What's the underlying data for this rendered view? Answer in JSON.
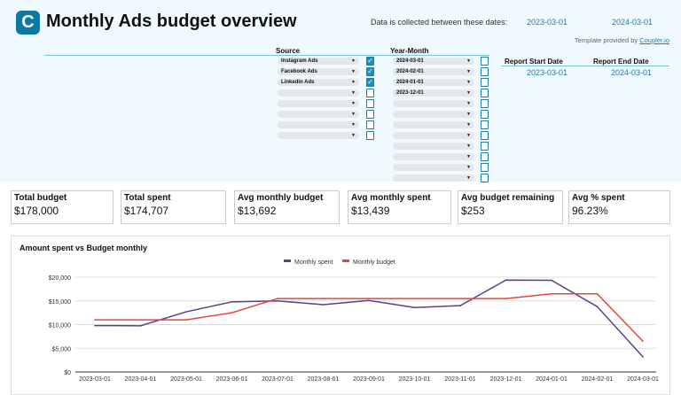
{
  "header": {
    "logo": "C",
    "title": "Monthly Ads budget overview",
    "dates_label": "Data is collected between these dates:",
    "start": "2023-03-01",
    "end": "2024-03-01",
    "credit_prefix": "Template provided by",
    "credit_link": "Coupler.io"
  },
  "filters": {
    "source_label": "Source",
    "year_month_label": "Year-Month",
    "sources": [
      {
        "v": "Instagram Ads",
        "c": true
      },
      {
        "v": "Facebook Ads",
        "c": true
      },
      {
        "v": "Linkedin Ads",
        "c": true
      },
      {
        "v": "",
        "c": false
      },
      {
        "v": "",
        "c": false
      },
      {
        "v": "",
        "c": false
      },
      {
        "v": "",
        "c": false
      },
      {
        "v": "",
        "c": false
      }
    ],
    "months": [
      {
        "v": "2024-03-01",
        "c": false
      },
      {
        "v": "2024-02-01",
        "c": false
      },
      {
        "v": "2024-01-01",
        "c": false
      },
      {
        "v": "2023-12-01",
        "c": false
      },
      {
        "v": "",
        "c": false
      },
      {
        "v": "",
        "c": false
      },
      {
        "v": "",
        "c": false
      },
      {
        "v": "",
        "c": false
      },
      {
        "v": "",
        "c": false
      },
      {
        "v": "",
        "c": false
      },
      {
        "v": "",
        "c": false
      },
      {
        "v": "",
        "c": false
      }
    ]
  },
  "report": {
    "start_label": "Report Start Date",
    "end_label": "Report End Date",
    "start": "2023-03-01",
    "end": "2024-03-01"
  },
  "kpis": [
    {
      "label": "Total budget",
      "value": "$178,000"
    },
    {
      "label": "Total spent",
      "value": "$174,707"
    },
    {
      "label": "Avg monthly budget",
      "value": "$13,692"
    },
    {
      "label": "Avg monthly spent",
      "value": "$13,439"
    },
    {
      "label": "Avg budget remaining",
      "value": "$253"
    },
    {
      "label": "Avg % spent",
      "value": "96.23%"
    }
  ],
  "chart_data": {
    "type": "line",
    "title": "Amount spent vs Budget monthly",
    "legend": "top",
    "categories": [
      "2023-03-01",
      "2023-04-01",
      "2023-05-01",
      "2023-06-01",
      "2023-07-01",
      "2023-08-01",
      "2023-09-01",
      "2023-10-01",
      "2023-11-01",
      "2023-12-01",
      "2024-01-01",
      "2024-02-01",
      "2024-03-01"
    ],
    "ylim": [
      0,
      20000
    ],
    "yticks": [
      "$0",
      "$5,000",
      "$10,000",
      "$15,000",
      "$20,000"
    ],
    "grid": true,
    "series": [
      {
        "name": "Monthly spent",
        "color": "#5b3f86",
        "values": [
          9800,
          9750,
          12700,
          14800,
          15000,
          14200,
          15100,
          13600,
          14000,
          19400,
          19350,
          13800,
          3200
        ]
      },
      {
        "name": "Monthly budget",
        "color": "#e8453c",
        "values": [
          11000,
          11000,
          11000,
          12500,
          15500,
          15500,
          15500,
          15500,
          15500,
          15500,
          16500,
          16500,
          6500
        ]
      }
    ]
  }
}
